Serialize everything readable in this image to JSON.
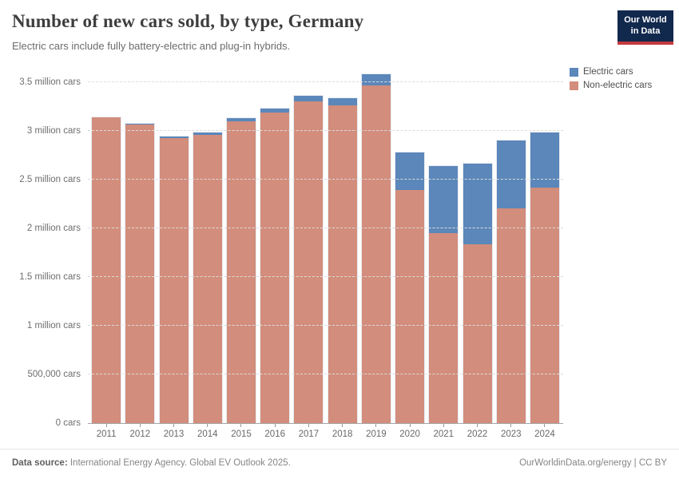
{
  "header": {
    "title": "Number of new cars sold, by type, Germany",
    "subtitle": "Electric cars include fully battery-electric and plug-in hybrids.",
    "logo": {
      "line1": "Our World",
      "line2": "in Data",
      "bg": "#12294e",
      "accent": "#c43a3f"
    }
  },
  "legend": [
    {
      "label": "Electric cars",
      "color": "#5b87ba"
    },
    {
      "label": "Non-electric cars",
      "color": "#d28d7c"
    }
  ],
  "chart_data": {
    "type": "bar",
    "stacked": true,
    "title": "Number of new cars sold, by type, Germany",
    "subtitle": "Electric cars include fully battery-electric and plug-in hybrids.",
    "unit": "million cars",
    "categories": [
      "2011",
      "2012",
      "2013",
      "2014",
      "2015",
      "2016",
      "2017",
      "2018",
      "2019",
      "2020",
      "2021",
      "2022",
      "2023",
      "2024"
    ],
    "series": [
      {
        "name": "Electric cars",
        "color": "#5b87ba",
        "values": [
          0.003,
          0.008,
          0.012,
          0.02,
          0.033,
          0.04,
          0.06,
          0.075,
          0.11,
          0.39,
          0.69,
          0.83,
          0.7,
          0.56
        ]
      },
      {
        "name": "Non-electric cars",
        "color": "#d28d7c",
        "values": [
          3.15,
          3.08,
          2.94,
          2.97,
          3.11,
          3.2,
          3.31,
          3.27,
          3.48,
          2.4,
          1.96,
          1.84,
          2.21,
          2.43
        ]
      }
    ],
    "totals": [
      3.15,
      3.09,
      2.95,
      2.99,
      3.14,
      3.24,
      3.37,
      3.35,
      3.59,
      2.79,
      2.65,
      2.67,
      2.91,
      2.99
    ],
    "ylim": [
      0,
      3.65
    ],
    "grid": "dashed",
    "legend_position": "top-right",
    "y_ticks": [
      {
        "value": 0,
        "label": "0 cars"
      },
      {
        "value": 0.5,
        "label": "500,000 cars"
      },
      {
        "value": 1,
        "label": "1 million cars"
      },
      {
        "value": 1.5,
        "label": "1.5 million cars"
      },
      {
        "value": 2,
        "label": "2 million cars"
      },
      {
        "value": 2.5,
        "label": "2.5 million cars"
      },
      {
        "value": 3,
        "label": "3 million cars"
      },
      {
        "value": 3.5,
        "label": "3.5 million cars"
      }
    ]
  },
  "footer": {
    "source_label": "Data source:",
    "source_text": " International Energy Agency. Global EV Outlook 2025.",
    "credit": "OurWorldinData.org/energy | CC BY"
  }
}
